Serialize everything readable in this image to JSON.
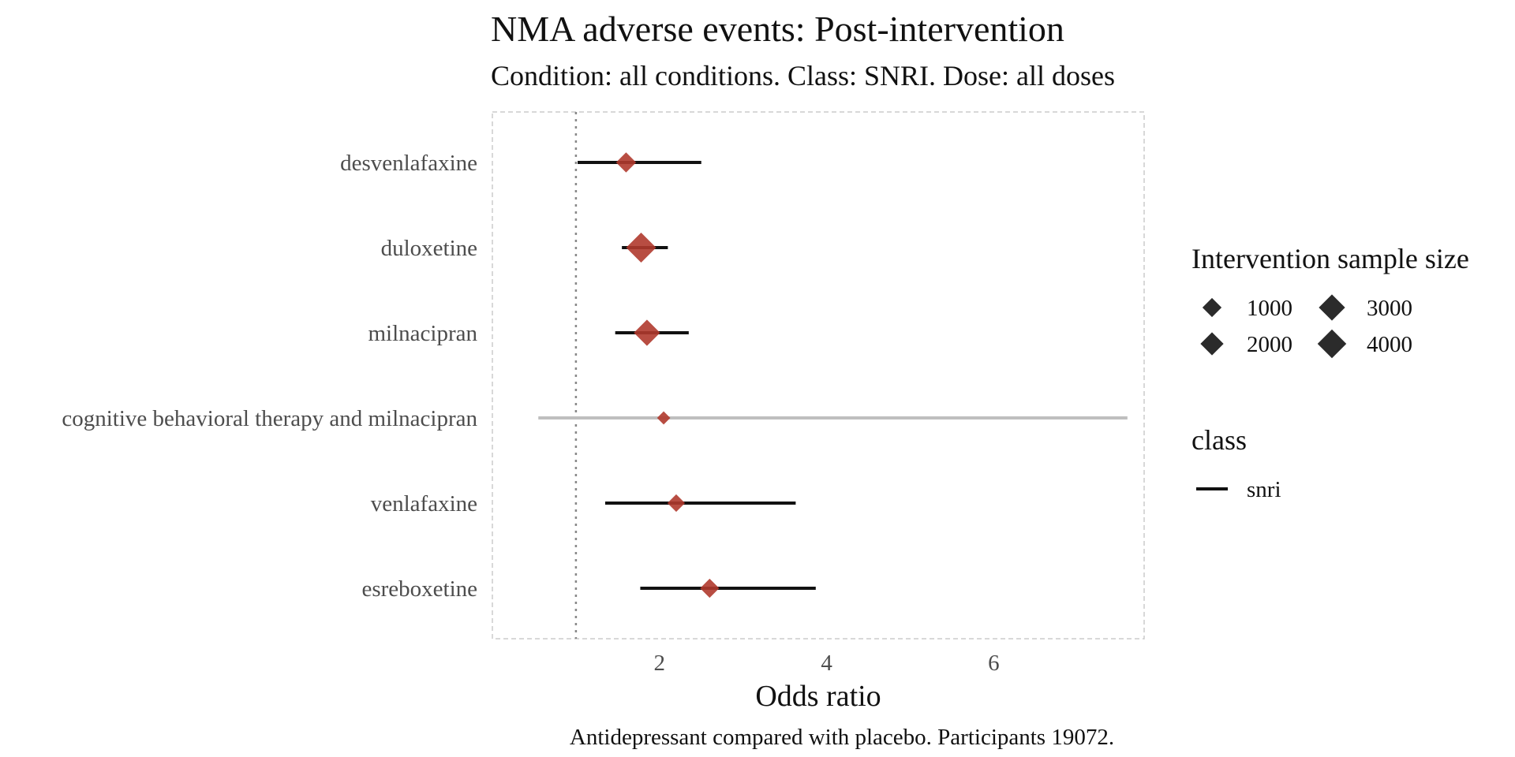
{
  "chart_data": {
    "type": "forest",
    "title": "NMA adverse events: Post-intervention",
    "subtitle": "Condition: all conditions. Class: SNRI. Dose: all doses",
    "xlabel": "Odds ratio",
    "caption": "Antidepressant compared with placebo. Participants 19072.",
    "xlim": [
      0.0,
      7.8
    ],
    "xticks": [
      2,
      4,
      6
    ],
    "reference_line": 1,
    "point_color": "#b03a2e",
    "interval_color": "#111111",
    "muted_interval_color": "#bfbfbf",
    "rows": [
      {
        "label": "desvenlafaxine",
        "estimate": 1.6,
        "lower": 1.02,
        "upper": 2.5,
        "sample_size": 1200,
        "muted": false
      },
      {
        "label": "duloxetine",
        "estimate": 1.78,
        "lower": 1.55,
        "upper": 2.1,
        "sample_size": 4500,
        "muted": false
      },
      {
        "label": "milnacipran",
        "estimate": 1.85,
        "lower": 1.47,
        "upper": 2.35,
        "sample_size": 3000,
        "muted": false
      },
      {
        "label": "cognitive behavioral therapy and milnacipran",
        "estimate": 2.05,
        "lower": 0.55,
        "upper": 7.6,
        "sample_size": 150,
        "muted": true
      },
      {
        "label": "venlafaxine",
        "estimate": 2.2,
        "lower": 1.35,
        "upper": 3.63,
        "sample_size": 700,
        "muted": false
      },
      {
        "label": "esreboxetine",
        "estimate": 2.6,
        "lower": 1.77,
        "upper": 3.87,
        "sample_size": 1000,
        "muted": false
      }
    ],
    "legend": {
      "size_title": "Intervention sample size",
      "size_entries": [
        {
          "label": "1000",
          "value": 1000
        },
        {
          "label": "2000",
          "value": 2000
        },
        {
          "label": "3000",
          "value": 3000
        },
        {
          "label": "4000",
          "value": 4000
        }
      ],
      "class_title": "class",
      "class_entries": [
        {
          "label": "snri"
        }
      ]
    }
  }
}
